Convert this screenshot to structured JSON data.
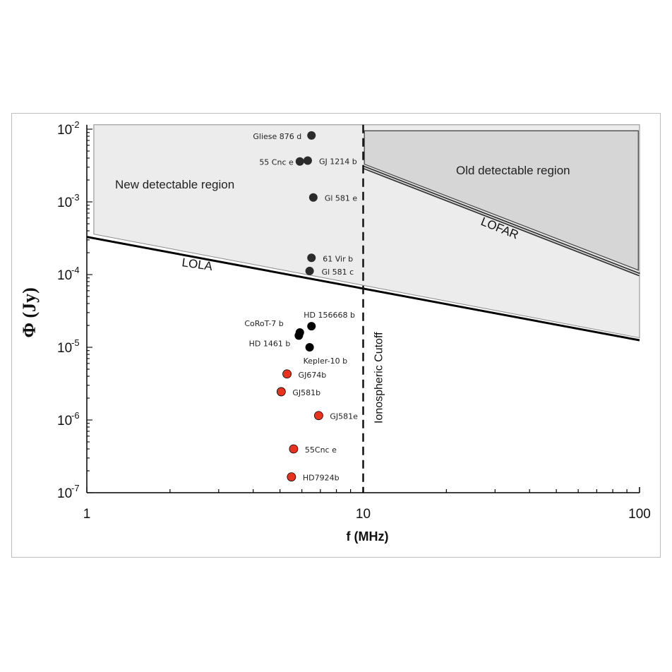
{
  "chart_data": {
    "type": "scatter",
    "title": "",
    "xlabel": "f (MHz)",
    "ylabel": "Φ (Jy)",
    "xscale": "log",
    "yscale": "log",
    "xlim": [
      1,
      100
    ],
    "ylim": [
      1e-07,
      0.012
    ],
    "x_ticks": [
      {
        "value": 1,
        "label": "1"
      },
      {
        "value": 10,
        "label": "10"
      },
      {
        "value": 100,
        "label": "100"
      }
    ],
    "y_ticks": [
      {
        "value": 1e-07,
        "base": "10",
        "exp": "-7"
      },
      {
        "value": 1e-06,
        "base": "10",
        "exp": "-6"
      },
      {
        "value": 1e-05,
        "base": "10",
        "exp": "-5"
      },
      {
        "value": 0.0001,
        "base": "10",
        "exp": "-4"
      },
      {
        "value": 0.001,
        "base": "10",
        "exp": "-3"
      },
      {
        "value": 0.01,
        "base": "10",
        "exp": "-2"
      }
    ],
    "grid": false,
    "colors": {
      "dark_point": "#2b2b2b",
      "black_point": "#000000",
      "red_point": "#e8321e",
      "new_region": "#ececec",
      "old_region": "#d6d6d6"
    },
    "series": [
      {
        "style": "dark",
        "points": [
          {
            "label": "Gliese 876 d",
            "x": 6.5,
            "y": 0.0082
          },
          {
            "label": "55 Cnc e",
            "x": 5.9,
            "y": 0.0036
          },
          {
            "label": "GJ 1214 b",
            "x": 6.3,
            "y": 0.0037
          },
          {
            "label": "Gl 581 e",
            "x": 6.6,
            "y": 0.00115
          },
          {
            "label": "61 Vir b",
            "x": 6.5,
            "y": 0.00017
          },
          {
            "label": "Gl 581 c",
            "x": 6.4,
            "y": 0.000112
          }
        ]
      },
      {
        "style": "black",
        "points": [
          {
            "label": "HD 156668 b",
            "x": 6.5,
            "y": 1.95e-05
          },
          {
            "label": "CoRoT-7 b",
            "x": 5.9,
            "y": 1.6e-05
          },
          {
            "label": "HD 1461 b",
            "x": 5.85,
            "y": 1.45e-05
          },
          {
            "label": "Kepler-10 b",
            "x": 6.4,
            "y": 1e-05
          }
        ]
      },
      {
        "style": "red",
        "points": [
          {
            "label": "GJ674b",
            "x": 5.3,
            "y": 4.3e-06
          },
          {
            "label": "GJ581b",
            "x": 5.05,
            "y": 2.45e-06
          },
          {
            "label": "GJ581e",
            "x": 6.9,
            "y": 1.15e-06
          },
          {
            "label": "55Cnc e",
            "x": 5.6,
            "y": 4e-07
          },
          {
            "label": "HD7924b",
            "x": 5.5,
            "y": 1.65e-07
          }
        ]
      }
    ],
    "curves": [
      {
        "label": "LOLA",
        "x": [
          1,
          100
        ],
        "y": [
          0.00033,
          1.25e-05
        ]
      },
      {
        "label": "LOFAR",
        "x": [
          10,
          100
        ],
        "y": [
          0.003,
          0.0001
        ]
      }
    ],
    "regions": [
      {
        "label": "New detectable region"
      },
      {
        "label": "Old detectable region"
      }
    ],
    "annotations": [
      {
        "label": "Ionospheric Cutoff",
        "x": 10
      }
    ]
  }
}
